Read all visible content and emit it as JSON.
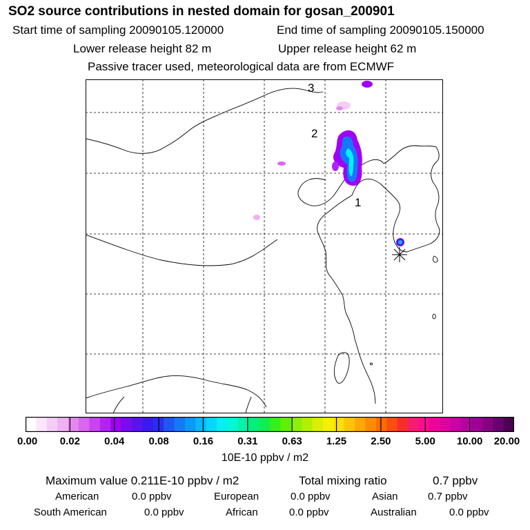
{
  "header": {
    "title": "SO2 source contributions in nested domain for gosan_200901",
    "start_label": "Start time of sampling 20090105.120000",
    "end_label": "End time of sampling 20090105.150000",
    "lower_label": "Lower release height   82 m",
    "upper_label": "Upper release height   62 m",
    "tracer_note": "Passive tracer used, meteorological data are from ECMWF"
  },
  "map": {
    "markers": [
      "1",
      "2",
      "3"
    ],
    "receptor_symbol": "asterisk"
  },
  "colorbar": {
    "ticks": [
      "0.00",
      "0.02",
      "0.04",
      "0.08",
      "0.16",
      "0.31",
      "0.63",
      "1.25",
      "2.50",
      "5.00",
      "10.00",
      "20.00"
    ],
    "unit": "10E-10 ppbv / m2",
    "colors": [
      "#ffffff",
      "#fbe6fb",
      "#f5ccf6",
      "#eeb2f2",
      "#e488ee",
      "#d966ee",
      "#c944f0",
      "#b322f2",
      "#9f00f6",
      "#7a0af4",
      "#5a12f2",
      "#3a1af0",
      "#2a2ef2",
      "#1e58f4",
      "#1478f8",
      "#0a98fa",
      "#04b8fc",
      "#00d8fd",
      "#00f0f4",
      "#00f8d4",
      "#00f4a8",
      "#00f07c",
      "#10ee52",
      "#34f018",
      "#60f000",
      "#8cf000",
      "#b2f000",
      "#d8f000",
      "#f4f000",
      "#ffe000",
      "#ffc400",
      "#ffa800",
      "#ff8c00",
      "#ff6c00",
      "#ff4c10",
      "#ff2c2c",
      "#ff1a70",
      "#ff0a90",
      "#f2009a",
      "#e000a0",
      "#cc00a4",
      "#b600a2",
      "#9e0096",
      "#860084",
      "#6a0070",
      "#4e0050"
    ]
  },
  "summary": {
    "max_label": "Maximum value  0.211E-10 ppbv / m2",
    "total_label": "Total mixing ratio",
    "total_value": "0.7 ppbv"
  },
  "regions": [
    {
      "name": "American",
      "value": "0.0 ppbv"
    },
    {
      "name": "European",
      "value": "0.0 ppbv"
    },
    {
      "name": "Asian",
      "value": "0.7 ppbv"
    },
    {
      "name": "South American",
      "value": "0.0 ppbv"
    },
    {
      "name": "African",
      "value": "0.0 ppbv"
    },
    {
      "name": "Australian",
      "value": "0.0 ppbv"
    }
  ]
}
